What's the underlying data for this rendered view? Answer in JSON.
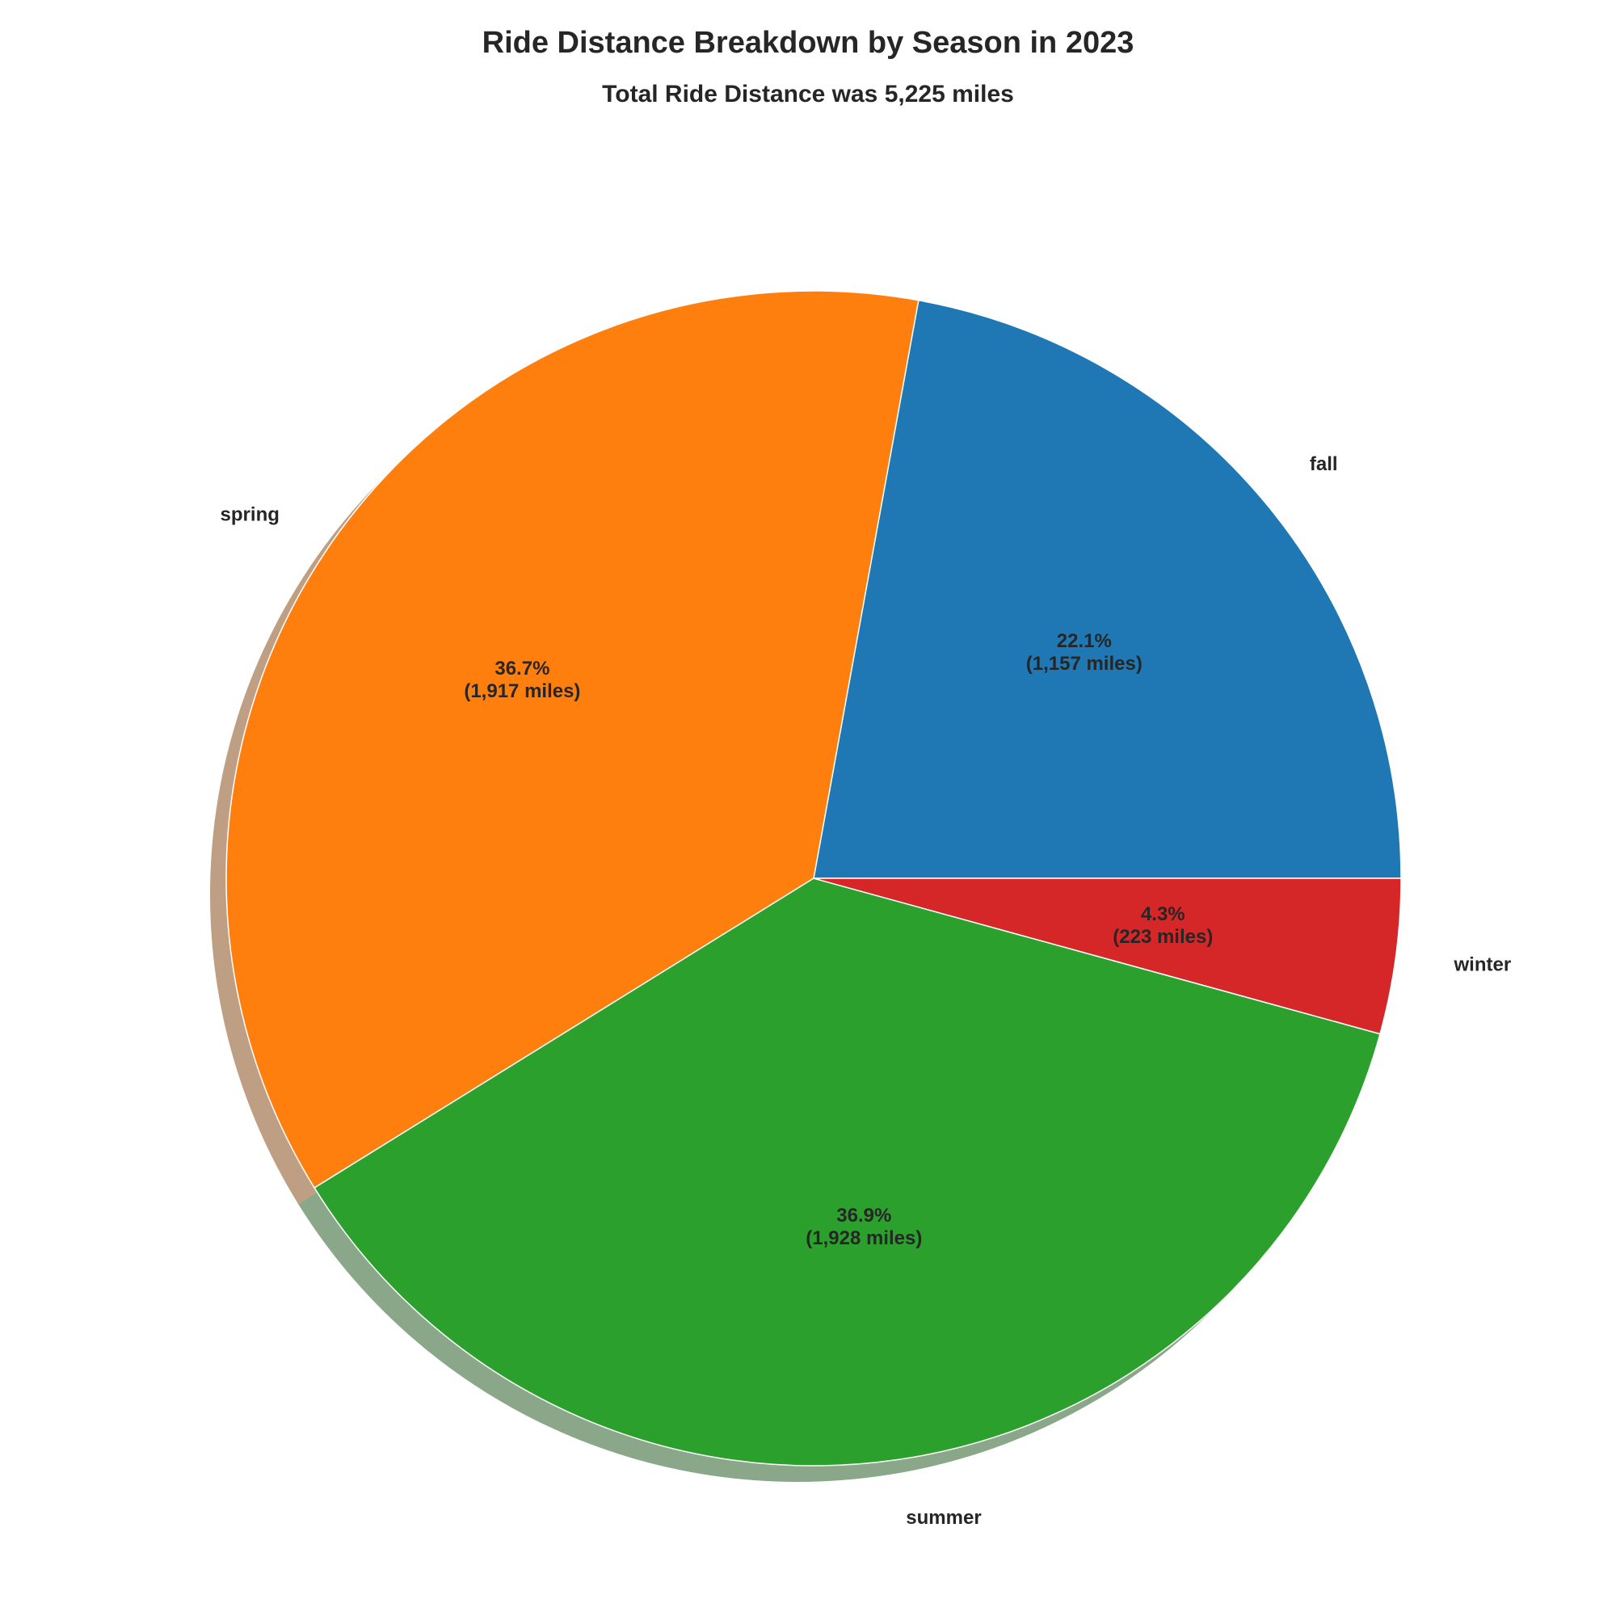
{
  "chart_data": {
    "type": "pie",
    "title": "Ride Distance Breakdown by Season in 2023",
    "subtitle": "Total Ride Distance was 5,225 miles",
    "slices": [
      {
        "label": "fall",
        "value": 1157,
        "percent_text": "22.1%",
        "value_text": "(1,157 miles)",
        "color": "#1f77b4"
      },
      {
        "label": "spring",
        "value": 1917,
        "percent_text": "36.7%",
        "value_text": "(1,917 miles)",
        "color": "#ff7f0e"
      },
      {
        "label": "summer",
        "value": 1928,
        "percent_text": "36.9%",
        "value_text": "(1,928 miles)",
        "color": "#2ca02c"
      },
      {
        "label": "winter",
        "value": 223,
        "percent_text": "4.3%",
        "value_text": "(223 miles)",
        "color": "#d62728"
      }
    ],
    "start_angle_deg": 0,
    "direction": "counterclockwise",
    "shadow": true,
    "edge_color": "#ffffff"
  }
}
